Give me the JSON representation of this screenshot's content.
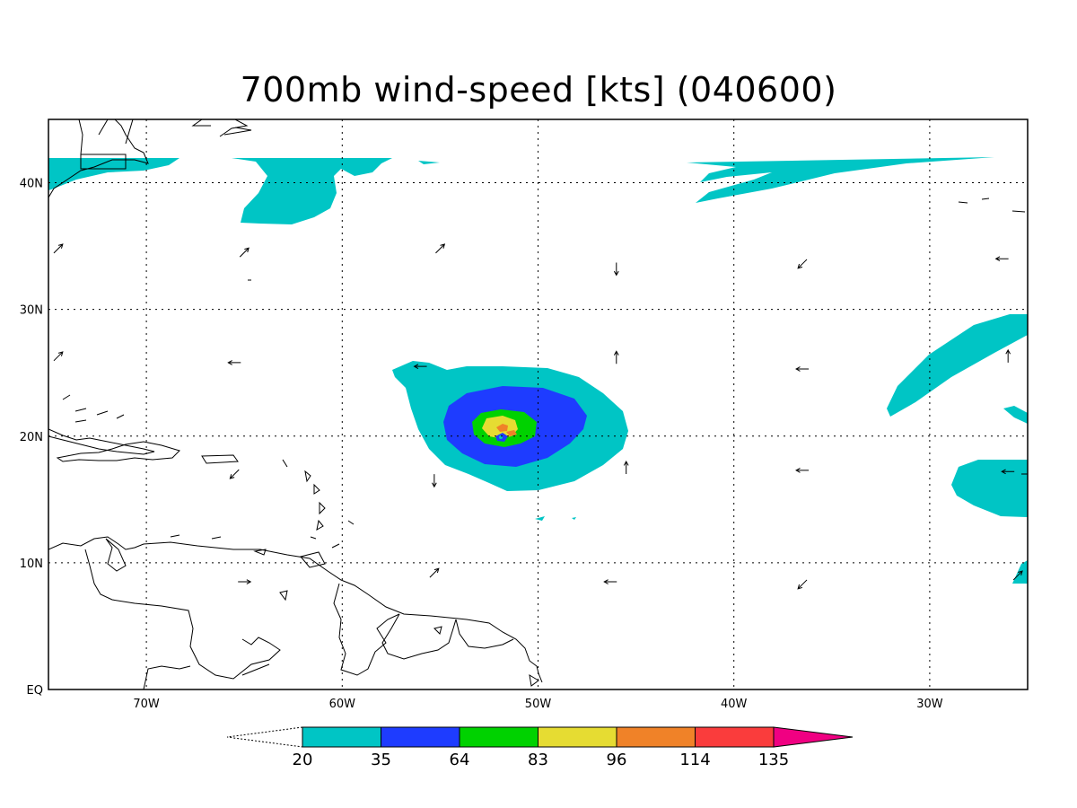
{
  "title": "700mb wind-speed [kts] (040600)",
  "lat_labels": [
    {
      "value": 40,
      "text": "40N"
    },
    {
      "value": 30,
      "text": "30N"
    },
    {
      "value": 20,
      "text": "20N"
    },
    {
      "value": 10,
      "text": "10N"
    },
    {
      "value": 0,
      "text": "EQ"
    }
  ],
  "lon_labels": [
    {
      "value": -70,
      "text": "70W"
    },
    {
      "value": -60,
      "text": "60W"
    },
    {
      "value": -50,
      "text": "50W"
    },
    {
      "value": -40,
      "text": "40W"
    },
    {
      "value": -30,
      "text": "30W"
    }
  ],
  "map_extent": {
    "lon": [
      -75,
      -25
    ],
    "lat": [
      0,
      45
    ]
  },
  "colorbar": {
    "labels": [
      "20",
      "35",
      "64",
      "83",
      "96",
      "114",
      "135"
    ],
    "colors": [
      "#00c5c5",
      "#1e3cff",
      "#00d200",
      "#e6dc32",
      "#f08228",
      "#fa3c3c",
      "#f00082"
    ]
  },
  "chart_data": {
    "type": "heatmap",
    "title": "700mb wind-speed [kts] (040600)",
    "variable": "700mb wind speed",
    "units": "kts",
    "valid_time": "040600",
    "contour_levels": [
      20,
      35,
      64,
      83,
      96,
      114,
      135
    ],
    "xlim": [
      -75,
      -25
    ],
    "ylim": [
      0,
      45
    ],
    "storm_center": {
      "lon": -51.8,
      "lat": 20.1,
      "max_category": "96-114 kts"
    },
    "wind_arrows": [
      {
        "lon": -65,
        "lat": 34.5,
        "dir": "NE"
      },
      {
        "lon": -55,
        "lat": 34.8,
        "dir": "NE"
      },
      {
        "lon": -46,
        "lat": 33.2,
        "dir": "S"
      },
      {
        "lon": -36.5,
        "lat": 33.6,
        "dir": "SW"
      },
      {
        "lon": -26.3,
        "lat": 34,
        "dir": "W"
      },
      {
        "lon": -74.5,
        "lat": 34.8,
        "dir": "NE"
      },
      {
        "lon": -74.5,
        "lat": 26.3,
        "dir": "NE"
      },
      {
        "lon": -65.5,
        "lat": 25.8,
        "dir": "W"
      },
      {
        "lon": -56,
        "lat": 25.5,
        "dir": "W"
      },
      {
        "lon": -46,
        "lat": 26.2,
        "dir": "N"
      },
      {
        "lon": -36.5,
        "lat": 25.3,
        "dir": "W"
      },
      {
        "lon": -26,
        "lat": 26.3,
        "dir": "N"
      },
      {
        "lon": -65.5,
        "lat": 17,
        "dir": "SW"
      },
      {
        "lon": -55.3,
        "lat": 16.5,
        "dir": "S"
      },
      {
        "lon": -45.5,
        "lat": 17.5,
        "dir": "N"
      },
      {
        "lon": -36.5,
        "lat": 17.3,
        "dir": "W"
      },
      {
        "lon": -26,
        "lat": 17.2,
        "dir": "W"
      },
      {
        "lon": -65,
        "lat": 8.5,
        "dir": "E"
      },
      {
        "lon": -55.3,
        "lat": 9.2,
        "dir": "NE"
      },
      {
        "lon": -46.3,
        "lat": 8.5,
        "dir": "W"
      },
      {
        "lon": -36.5,
        "lat": 8.3,
        "dir": "SW"
      },
      {
        "lon": -25.5,
        "lat": 9,
        "dir": "NE"
      }
    ]
  }
}
